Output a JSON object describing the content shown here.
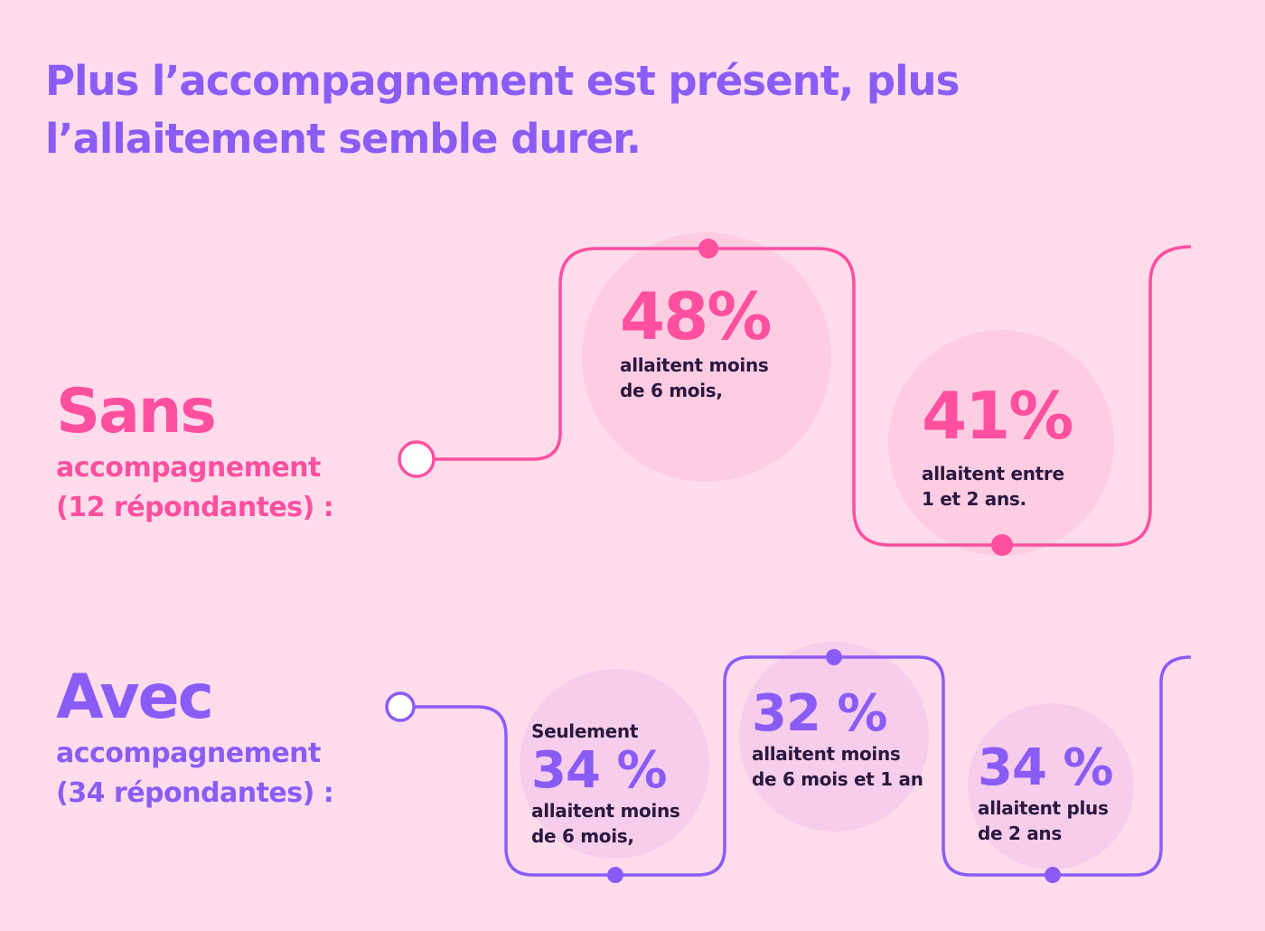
{
  "title": {
    "line1": "Plus l’accompagnement est présent, plus",
    "line2": "l’allaitement semble durer."
  },
  "sans": {
    "heading": "Sans",
    "subtitle1": "accompagnement",
    "subtitle2": "(12 répondantes) :",
    "stats": [
      {
        "value": "48%",
        "text1": "allaitent moins",
        "text2": "de 6 mois,"
      },
      {
        "value": "41%",
        "text1": "allaitent entre",
        "text2": "1 et 2 ans."
      }
    ]
  },
  "avec": {
    "heading": "Avec",
    "subtitle1": "accompagnement",
    "subtitle2": "(34 répondantes) :",
    "stats": [
      {
        "prefix": "Seulement",
        "value": "34 %",
        "text1": "allaitent moins",
        "text2": "de 6 mois,"
      },
      {
        "value": "32 %",
        "text1": "allaitent moins",
        "text2": "de 6 mois et 1 an"
      },
      {
        "value": "34 %",
        "text1": "allaitent plus",
        "text2": "de 2 ans"
      }
    ]
  },
  "colors": {
    "background": "#ffdcec",
    "pink": "#ff4f9f",
    "violet": "#8a5cf6",
    "dark_text": "#2a1840"
  }
}
